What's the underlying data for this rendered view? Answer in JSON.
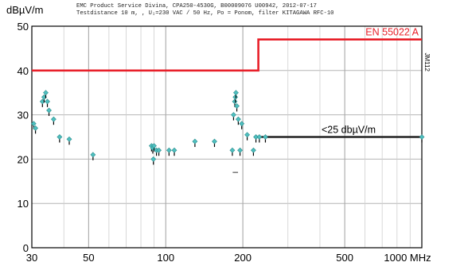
{
  "chart_data": {
    "type": "line",
    "ylabel": "dBµV/m",
    "header_lines": [
      "EMC Product Service Divina, CPA250-4530G, B00009076 U00942, 2012-07-17",
      "Testdistance 10 m, , U₁=230 VAC / 50 Hz, Po = Ponom, filter KITAGAWA RFC-10"
    ],
    "side_label": "JM112",
    "x_scale": "log",
    "xlim": [
      30,
      1000
    ],
    "ylim": [
      0,
      50
    ],
    "x_ticks": [
      30,
      50,
      100,
      200,
      500,
      1000
    ],
    "x_tick_labels": [
      "30",
      "50",
      "100",
      "200",
      "500",
      "1000 MHz"
    ],
    "y_ticks": [
      0,
      10,
      20,
      30,
      40,
      50
    ],
    "grid": true,
    "limit_lines": [
      {
        "name": "EN 55022 A",
        "color": "#e8202a",
        "points": [
          [
            30,
            40
          ],
          [
            230,
            40
          ],
          [
            230,
            47
          ],
          [
            1000,
            47
          ]
        ]
      },
      {
        "name": "<25 dbµV/m",
        "color": "#222222",
        "points": [
          [
            230,
            25
          ],
          [
            1000,
            25
          ]
        ]
      }
    ],
    "series": [
      {
        "type": "scatter",
        "color": "#4fc0c0",
        "points": [
          [
            30.5,
            28
          ],
          [
            31,
            27
          ],
          [
            33,
            33
          ],
          [
            33.5,
            34
          ],
          [
            34,
            35
          ],
          [
            34.5,
            33
          ],
          [
            35,
            31
          ],
          [
            36.5,
            29
          ],
          [
            38.5,
            25
          ],
          [
            42,
            24.5
          ],
          [
            52,
            21
          ],
          [
            88,
            23
          ],
          [
            89,
            22.5
          ],
          [
            89.5,
            20
          ],
          [
            90,
            23
          ],
          [
            92,
            22
          ],
          [
            94,
            22
          ],
          [
            103,
            22
          ],
          [
            108,
            22
          ],
          [
            130,
            24
          ],
          [
            155,
            24
          ],
          [
            182,
            22
          ],
          [
            184,
            30
          ],
          [
            186,
            33
          ],
          [
            187,
            34
          ],
          [
            188,
            35
          ],
          [
            189.5,
            32
          ],
          [
            192,
            29
          ],
          [
            195,
            22
          ],
          [
            198,
            28
          ],
          [
            208,
            25.5
          ],
          [
            220,
            22
          ],
          [
            225,
            25
          ],
          [
            232,
            25
          ],
          [
            245,
            25
          ],
          [
            1000,
            25
          ]
        ]
      }
    ],
    "annotation": "–"
  }
}
